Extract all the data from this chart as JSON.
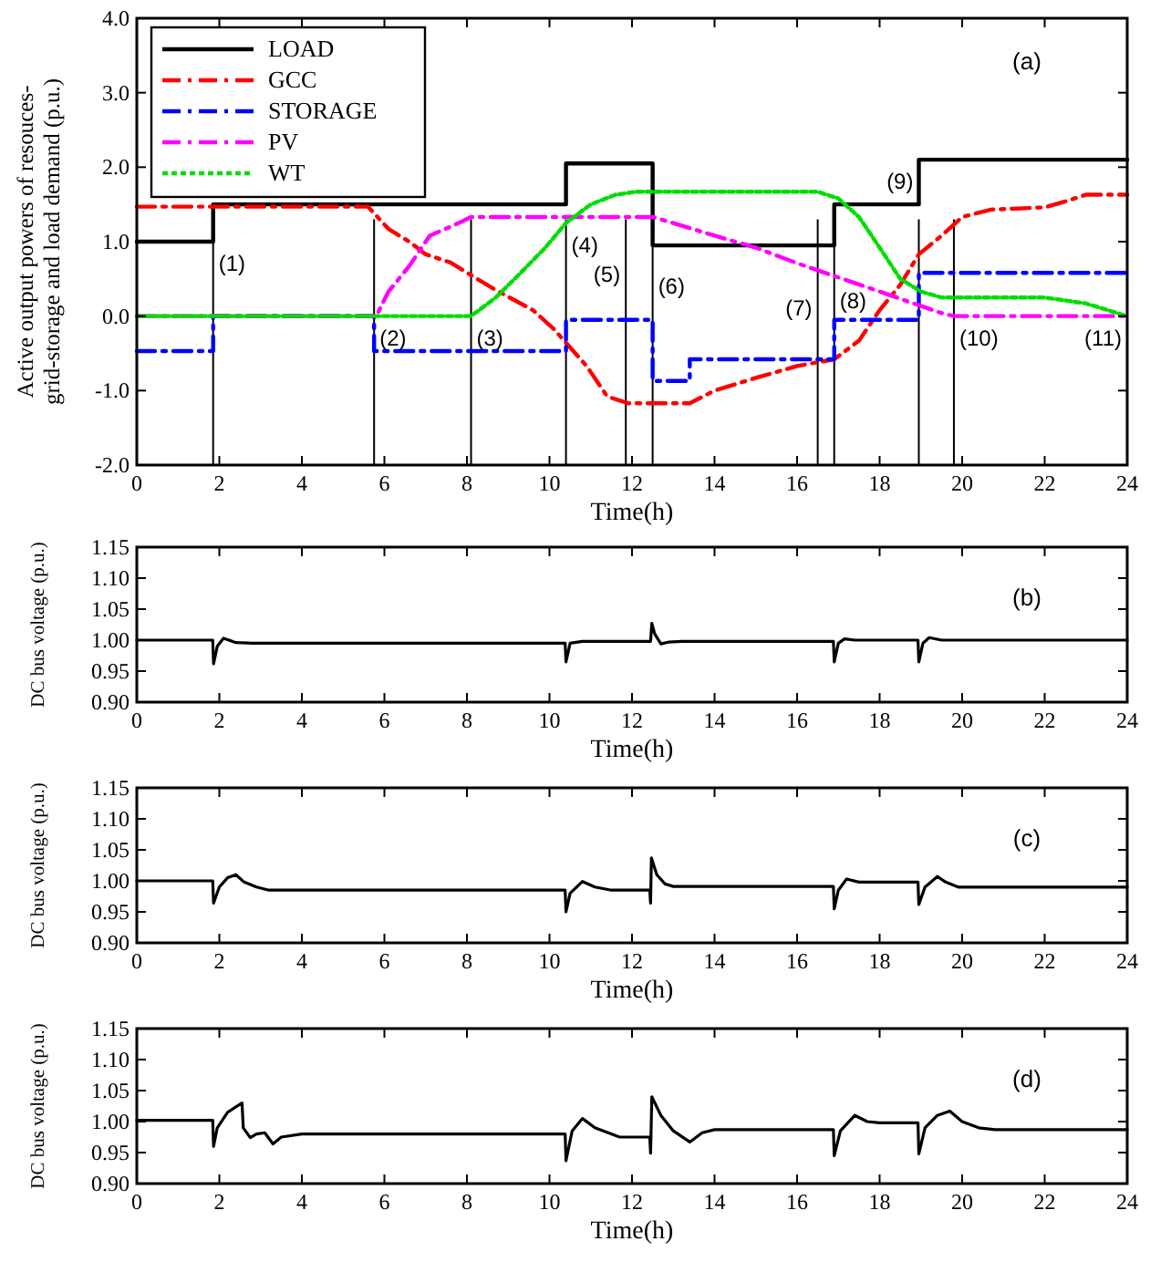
{
  "chart_data": [
    {
      "type": "line",
      "xlabel": "Time(h)",
      "ylabel": "Active output powers  of resouces-grid-storage and load demand (p.u.)",
      "xlim": [
        0,
        24
      ],
      "ylim": [
        -2,
        4
      ],
      "xticks": [
        0,
        2,
        4,
        6,
        8,
        10,
        12,
        14,
        16,
        18,
        20,
        22,
        24
      ],
      "yticks": [
        {
          "value": -2,
          "label": "-2.0"
        },
        {
          "value": -1,
          "label": "-1.0"
        },
        {
          "value": 0,
          "label": "0.0"
        },
        {
          "value": 1,
          "label": "1.0"
        },
        {
          "value": 2,
          "label": "2.0"
        },
        {
          "value": 3,
          "label": "3.0"
        },
        {
          "value": 4,
          "label": "4.0"
        }
      ],
      "legend": "top left",
      "annotations": [
        "(a)",
        {
          "text": "(1)",
          "x": 1.85,
          "y": 1.0
        },
        {
          "text": "(2)",
          "x": 5.75,
          "y": 0
        },
        {
          "text": "(3)",
          "x": 8.1,
          "y": 0
        },
        {
          "text": "(4)",
          "x": 10.4,
          "y": 1.25
        },
        {
          "text": "(5)",
          "x": 11.85,
          "y": 0.85
        },
        {
          "text": "(6)",
          "x": 12.5,
          "y": 0.7
        },
        {
          "text": "(7)",
          "x": 16.5,
          "y": 0.4
        },
        {
          "text": "(8)",
          "x": 16.9,
          "y": 0.5
        },
        {
          "text": "(9)",
          "x": 18.95,
          "y": 2.1
        },
        {
          "text": "(10)",
          "x": 19.8,
          "y": 0
        },
        {
          "text": "(11)",
          "x": 24,
          "y": 0
        }
      ],
      "series": [
        {
          "name": "LOAD",
          "color": "#000000",
          "line_style": "solid",
          "x": [
            0,
            1.85,
            1.85,
            10.4,
            10.4,
            12.5,
            12.5,
            16.9,
            16.9,
            18.95,
            18.95,
            24
          ],
          "values": [
            1,
            1,
            1.5,
            1.5,
            2.05,
            2.05,
            0.95,
            0.95,
            1.5,
            1.5,
            2.1,
            2.1
          ]
        },
        {
          "name": "GCC",
          "color": "#ff0000",
          "line_style": "dashed",
          "x": [
            0,
            5.6,
            6.1,
            6.6,
            7.0,
            7.6,
            8.1,
            8.7,
            9.6,
            10.1,
            10.9,
            11.4,
            11.9,
            12.5,
            13.4,
            14,
            15,
            16,
            16.9,
            17.5,
            18,
            18.5,
            18.95,
            19.5,
            20,
            20.7,
            22,
            22.5,
            23,
            24
          ],
          "values": [
            1.47,
            1.47,
            1.17,
            1.0,
            0.83,
            0.72,
            0.55,
            0.35,
            0.08,
            -0.17,
            -0.67,
            -1.08,
            -1.17,
            -1.17,
            -1.17,
            -1.0,
            -0.83,
            -0.67,
            -0.58,
            -0.33,
            0.08,
            0.42,
            0.83,
            1.08,
            1.33,
            1.43,
            1.46,
            1.54,
            1.63,
            1.63
          ]
        },
        {
          "name": "STORAGE",
          "color": "#0000ff",
          "line_style": "dashed",
          "x": [
            0,
            1.85,
            1.85,
            5.75,
            5.75,
            10.4,
            10.4,
            12.5,
            12.5,
            13.4,
            13.4,
            16.9,
            16.9,
            18.95,
            18.95,
            24
          ],
          "values": [
            -0.47,
            -0.47,
            0,
            0,
            -0.47,
            -0.47,
            -0.05,
            -0.05,
            -0.87,
            -0.87,
            -0.58,
            -0.58,
            -0.05,
            -0.05,
            0.58,
            0.58
          ]
        },
        {
          "name": "PV",
          "color": "#ff00ff",
          "line_style": "dashed",
          "x": [
            0,
            5.8,
            6.1,
            6.6,
            7.1,
            7.6,
            8.1,
            12.5,
            13,
            14,
            15,
            16,
            18,
            19.5,
            19.8,
            24
          ],
          "values": [
            0,
            0,
            0.33,
            0.67,
            1.08,
            1.2,
            1.33,
            1.33,
            1.25,
            1.08,
            0.92,
            0.71,
            0.33,
            0.04,
            0,
            0
          ]
        },
        {
          "name": "WT",
          "color": "#00dd00",
          "line_style": "dotted",
          "x": [
            0,
            8.1,
            8.7,
            9.3,
            9.9,
            10.4,
            11,
            11.6,
            12.1,
            16.5,
            17,
            17.5,
            18,
            18.5,
            19,
            19.5,
            22,
            23,
            24
          ],
          "values": [
            0,
            0,
            0.25,
            0.58,
            0.92,
            1.25,
            1.5,
            1.63,
            1.67,
            1.67,
            1.58,
            1.33,
            0.92,
            0.5,
            0.33,
            0.25,
            0.25,
            0.17,
            0
          ]
        }
      ],
      "ref_lines": [
        {
          "axis": "x",
          "value": 1.85
        },
        {
          "axis": "x",
          "value": 5.75
        },
        {
          "axis": "x",
          "value": 8.1
        },
        {
          "axis": "x",
          "value": 10.4
        },
        {
          "axis": "x",
          "value": 11.85
        },
        {
          "axis": "x",
          "value": 12.5
        },
        {
          "axis": "x",
          "value": 16.5
        },
        {
          "axis": "x",
          "value": 16.9
        },
        {
          "axis": "x",
          "value": 18.95
        },
        {
          "axis": "x",
          "value": 19.8
        }
      ]
    },
    {
      "type": "line",
      "xlabel": "Time(h)",
      "ylabel": "DC bus voltage (p.u.)",
      "xlim": [
        0,
        24
      ],
      "ylim": [
        0.9,
        1.15
      ],
      "xticks": [
        0,
        2,
        4,
        6,
        8,
        10,
        12,
        14,
        16,
        18,
        20,
        22,
        24
      ],
      "yticks": [
        {
          "value": 0.9,
          "label": "0.90"
        },
        {
          "value": 0.95,
          "label": "0.95"
        },
        {
          "value": 1.0,
          "label": "1.00"
        },
        {
          "value": 1.05,
          "label": "1.05"
        },
        {
          "value": 1.1,
          "label": "1.10"
        },
        {
          "value": 1.15,
          "label": "1.15"
        }
      ],
      "annotations": [
        "(b)"
      ],
      "series": [
        {
          "color": "#000000",
          "x": [
            0,
            1.84,
            1.86,
            1.95,
            2.1,
            2.4,
            2.8,
            10.38,
            10.4,
            10.5,
            10.8,
            12.45,
            12.48,
            12.55,
            12.7,
            12.9,
            13.2,
            16.88,
            16.9,
            17.0,
            17.15,
            17.4,
            18.93,
            18.95,
            19.05,
            19.2,
            19.5,
            24
          ],
          "values": [
            1.0,
            1.0,
            0.962,
            0.99,
            1.003,
            0.996,
            0.995,
            0.995,
            0.965,
            0.995,
            0.998,
            0.998,
            1.027,
            1.01,
            0.994,
            0.997,
            0.998,
            0.998,
            0.965,
            0.995,
            1.002,
            1.0,
            1.0,
            0.965,
            0.995,
            1.004,
            1.0,
            1.0
          ]
        }
      ]
    },
    {
      "type": "line",
      "xlabel": "Time(h)",
      "ylabel": "DC bus voltage (p.u.)",
      "xlim": [
        0,
        24
      ],
      "ylim": [
        0.9,
        1.15
      ],
      "xticks": [
        0,
        2,
        4,
        6,
        8,
        10,
        12,
        14,
        16,
        18,
        20,
        22,
        24
      ],
      "yticks": [
        {
          "value": 0.9,
          "label": "0.90"
        },
        {
          "value": 0.95,
          "label": "0.95"
        },
        {
          "value": 1.0,
          "label": "1.00"
        },
        {
          "value": 1.05,
          "label": "1.05"
        },
        {
          "value": 1.1,
          "label": "1.10"
        },
        {
          "value": 1.15,
          "label": "1.15"
        }
      ],
      "annotations": [
        "(c)"
      ],
      "series": [
        {
          "color": "#000000",
          "x": [
            0,
            1.84,
            1.86,
            2.0,
            2.2,
            2.4,
            2.6,
            2.9,
            3.2,
            10.38,
            10.4,
            10.5,
            10.8,
            11.1,
            11.5,
            12.43,
            12.45,
            12.47,
            12.6,
            12.8,
            13.0,
            16.88,
            16.9,
            17.0,
            17.2,
            17.5,
            18.93,
            18.95,
            19.1,
            19.4,
            19.6,
            19.9,
            24
          ],
          "values": [
            1.0,
            1.0,
            0.964,
            0.99,
            1.005,
            1.01,
            0.998,
            0.99,
            0.985,
            0.985,
            0.95,
            0.98,
            0.999,
            0.99,
            0.985,
            0.985,
            0.964,
            1.037,
            1.01,
            0.995,
            0.991,
            0.991,
            0.955,
            0.985,
            1.003,
            0.998,
            0.998,
            0.962,
            0.99,
            1.007,
            0.998,
            0.99,
            0.99
          ]
        }
      ]
    },
    {
      "type": "line",
      "xlabel": "Time(h)",
      "ylabel": "DC bus voltage (p.u.)",
      "xlim": [
        0,
        24
      ],
      "ylim": [
        0.9,
        1.15
      ],
      "xticks": [
        0,
        2,
        4,
        6,
        8,
        10,
        12,
        14,
        16,
        18,
        20,
        22,
        24
      ],
      "yticks": [
        {
          "value": 0.9,
          "label": "0.90"
        },
        {
          "value": 0.95,
          "label": "0.95"
        },
        {
          "value": 1.0,
          "label": "1.00"
        },
        {
          "value": 1.05,
          "label": "1.05"
        },
        {
          "value": 1.1,
          "label": "1.10"
        },
        {
          "value": 1.15,
          "label": "1.15"
        }
      ],
      "annotations": [
        "(d)"
      ],
      "series": [
        {
          "color": "#000000",
          "x": [
            0,
            1.84,
            1.86,
            1.95,
            2.2,
            2.55,
            2.58,
            2.75,
            2.9,
            3.1,
            3.3,
            3.5,
            4.0,
            10.38,
            10.4,
            10.55,
            10.8,
            11.1,
            11.7,
            12.43,
            12.45,
            12.48,
            12.7,
            13.0,
            13.4,
            13.7,
            14,
            16.88,
            16.9,
            17.05,
            17.4,
            17.7,
            18.0,
            18.93,
            18.95,
            19.1,
            19.4,
            19.7,
            20.0,
            20.4,
            20.8,
            24
          ],
          "values": [
            1.002,
            1.002,
            0.96,
            0.99,
            1.015,
            1.03,
            0.99,
            0.974,
            0.98,
            0.982,
            0.964,
            0.975,
            0.98,
            0.98,
            0.937,
            0.985,
            1.005,
            0.99,
            0.975,
            0.975,
            0.949,
            1.04,
            1.01,
            0.985,
            0.967,
            0.982,
            0.987,
            0.987,
            0.945,
            0.985,
            1.01,
            1.0,
            0.998,
            0.998,
            0.948,
            0.99,
            1.01,
            1.017,
            1.0,
            0.99,
            0.987,
            0.987
          ]
        }
      ]
    }
  ]
}
